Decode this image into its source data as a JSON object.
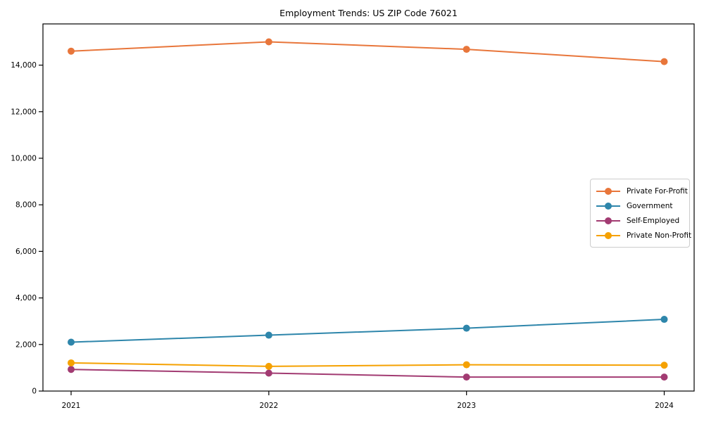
{
  "chart_data": {
    "type": "line",
    "title": "Employment Trends: US ZIP Code 76021",
    "x": [
      "2021",
      "2022",
      "2023",
      "2024"
    ],
    "series": [
      {
        "name": "Private For-Profit",
        "color": "#E8763B",
        "values": [
          14600,
          15000,
          14680,
          14150
        ]
      },
      {
        "name": "Government",
        "color": "#2E86AB",
        "values": [
          2100,
          2400,
          2700,
          3080
        ]
      },
      {
        "name": "Self-Employed",
        "color": "#A23B72",
        "values": [
          930,
          770,
          600,
          600
        ]
      },
      {
        "name": "Private Non-Profit",
        "color": "#F5A101",
        "values": [
          1210,
          1060,
          1130,
          1110
        ]
      }
    ],
    "xlabel": "",
    "ylabel": "",
    "ylim": [
      0,
      15770
    ],
    "yticks": [
      0,
      2000,
      4000,
      6000,
      8000,
      10000,
      12000,
      14000
    ],
    "ytick_labels": [
      "0",
      "2,000",
      "4,000",
      "6,000",
      "8,000",
      "10,000",
      "12,000",
      "14,000"
    ],
    "grid": false,
    "legend_position": "center right",
    "spine_color": "#000000",
    "marker": "o"
  }
}
